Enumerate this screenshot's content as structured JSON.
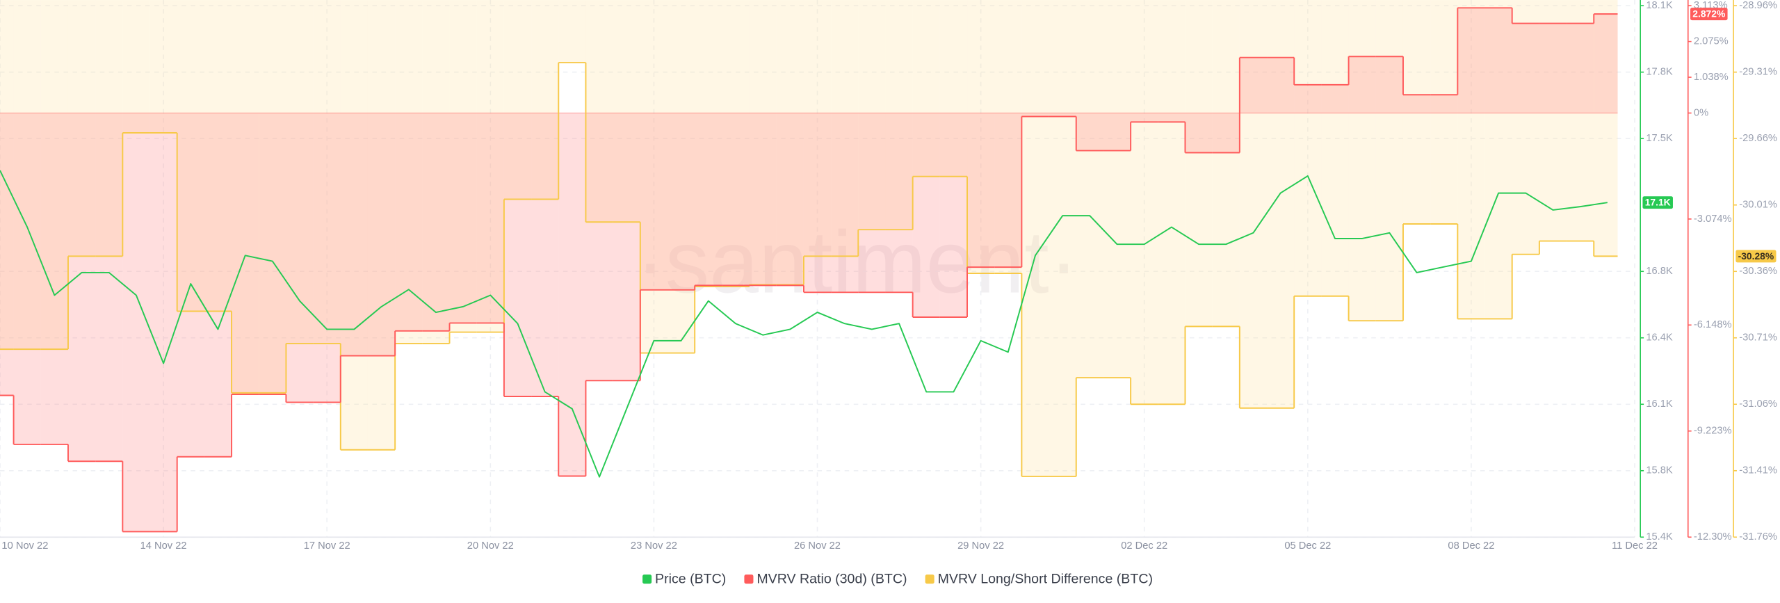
{
  "chart_data": {
    "type": "line",
    "watermark": "·santiment·",
    "categories": [
      "10 Nov 22",
      null,
      null,
      null,
      null,
      null,
      "14 Nov 22",
      null,
      null,
      null,
      null,
      null,
      "17 Nov 22",
      null,
      null,
      null,
      null,
      null,
      "20 Nov 22",
      null,
      null,
      null,
      null,
      null,
      "23 Nov 22",
      null,
      null,
      null,
      null,
      null,
      "26 Nov 22",
      null,
      null,
      null,
      null,
      null,
      "29 Nov 22",
      null,
      null,
      null,
      null,
      null,
      "02 Dec 22",
      null,
      null,
      null,
      null,
      null,
      "05 Dec 22",
      null,
      null,
      null,
      null,
      null,
      "08 Dec 22",
      null,
      null,
      null,
      null,
      null,
      "11 Dec 22"
    ],
    "ylim": [
      15400,
      18100
    ],
    "yticks": [
      {
        "value": 18100,
        "label": "18.1K"
      },
      {
        "value": 17762.5,
        "label": "17.8K"
      },
      {
        "value": 17425,
        "label": "17.5K"
      },
      {
        "value": 16750,
        "label": "16.8K"
      },
      {
        "value": 16412.5,
        "label": "16.4K"
      },
      {
        "value": 16075,
        "label": "16.1K"
      },
      {
        "value": 15737.5,
        "label": "15.8K"
      },
      {
        "value": 15400,
        "label": "15.4K"
      }
    ],
    "y2lim": [
      -12.3,
      3.113
    ],
    "y2ticks": [
      {
        "value": 3.113,
        "label": "3.113%"
      },
      {
        "value": 2.075,
        "label": "2.075%"
      },
      {
        "value": 1.038,
        "label": "1.038%"
      },
      {
        "value": 0,
        "label": "0%"
      },
      {
        "value": -3.074,
        "label": "-3.074%"
      },
      {
        "value": -6.148,
        "label": "-6.148%"
      },
      {
        "value": -9.223,
        "label": "-9.223%"
      },
      {
        "value": -12.3,
        "label": "-12.30%"
      }
    ],
    "y3lim": [
      -31.76,
      -28.96
    ],
    "y3ticks": [
      {
        "value": -28.96,
        "label": "-28.96%"
      },
      {
        "value": -29.31,
        "label": "-29.31%"
      },
      {
        "value": -29.66,
        "label": "-29.66%"
      },
      {
        "value": -30.01,
        "label": "-30.01%"
      },
      {
        "value": -30.36,
        "label": "-30.36%"
      },
      {
        "value": -30.71,
        "label": "-30.71%"
      },
      {
        "value": -31.06,
        "label": "-31.06%"
      },
      {
        "value": -31.41,
        "label": "-31.41%"
      },
      {
        "value": -31.76,
        "label": "-31.76%"
      }
    ],
    "grid": true,
    "legend": "bottom",
    "series": [
      {
        "name": "Price (BTC)",
        "color": "#26c953",
        "style": "line",
        "axis": "y",
        "last_label": "17.1K",
        "values": [
          17263,
          16975,
          16629,
          16744,
          16744,
          16629,
          16283,
          16687,
          16456,
          16831,
          16802,
          16600,
          16456,
          16456,
          16571,
          16658,
          16542,
          16571,
          16629,
          16485,
          16138,
          16052,
          15706,
          16052,
          16398,
          16398,
          16600,
          16485,
          16427,
          16456,
          16542,
          16485,
          16456,
          16485,
          16138,
          16138,
          16398,
          16340,
          16831,
          17033,
          17033,
          16888,
          16888,
          16975,
          16888,
          16888,
          16946,
          17148,
          17235,
          16917,
          16917,
          16946,
          16744,
          16773,
          16802,
          17148,
          17148,
          17062,
          17079,
          17100,
          null
        ]
      },
      {
        "name": "MVRV Ratio (30d) (BTC)",
        "color": "#ff5b5b",
        "fill": "#ff8a8a",
        "style": "step-area",
        "axis": "y2",
        "last_label": "2.872%",
        "values": [
          -8.19,
          -9.61,
          -9.61,
          -10.1,
          -10.1,
          -12.14,
          -12.14,
          -9.97,
          -9.97,
          -8.16,
          -8.16,
          -8.39,
          -8.39,
          -7.04,
          -7.04,
          -6.32,
          -6.32,
          -6.09,
          -6.09,
          -8.22,
          -8.22,
          -10.53,
          -7.76,
          -7.76,
          -5.13,
          -5.13,
          -5.0,
          -5.0,
          -5.0,
          -5.0,
          -5.2,
          -5.2,
          -5.2,
          -5.2,
          -5.92,
          -5.92,
          -4.47,
          -4.47,
          -0.1,
          -0.1,
          -1.09,
          -1.09,
          -0.26,
          -0.26,
          -1.15,
          -1.15,
          1.61,
          1.61,
          0.82,
          0.82,
          1.64,
          1.64,
          0.53,
          0.53,
          3.05,
          3.05,
          2.6,
          2.6,
          2.6,
          2.872,
          null
        ]
      },
      {
        "name": "MVRV Long/Short Difference (BTC)",
        "color": "#f7c948",
        "fill": "#ffe2a0",
        "style": "step-area",
        "axis": "y3",
        "last_label": "-30.28%",
        "values": [
          -30.77,
          -30.77,
          -30.77,
          -30.28,
          -30.28,
          -29.63,
          -29.63,
          -30.57,
          -30.57,
          -31.0,
          -31.0,
          -30.74,
          -30.74,
          -31.3,
          -31.3,
          -30.74,
          -30.74,
          -30.68,
          -30.68,
          -29.98,
          -29.98,
          -29.26,
          -30.1,
          -30.1,
          -30.79,
          -30.79,
          -30.44,
          -30.44,
          -30.43,
          -30.43,
          -30.28,
          -30.28,
          -30.14,
          -30.14,
          -29.86,
          -29.86,
          -30.37,
          -30.37,
          -31.44,
          -31.44,
          -30.92,
          -30.92,
          -31.06,
          -31.06,
          -30.65,
          -30.65,
          -31.08,
          -31.08,
          -30.49,
          -30.49,
          -30.62,
          -30.62,
          -30.11,
          -30.11,
          -30.61,
          -30.61,
          -30.27,
          -30.2,
          -30.2,
          -30.28,
          null
        ]
      }
    ]
  }
}
